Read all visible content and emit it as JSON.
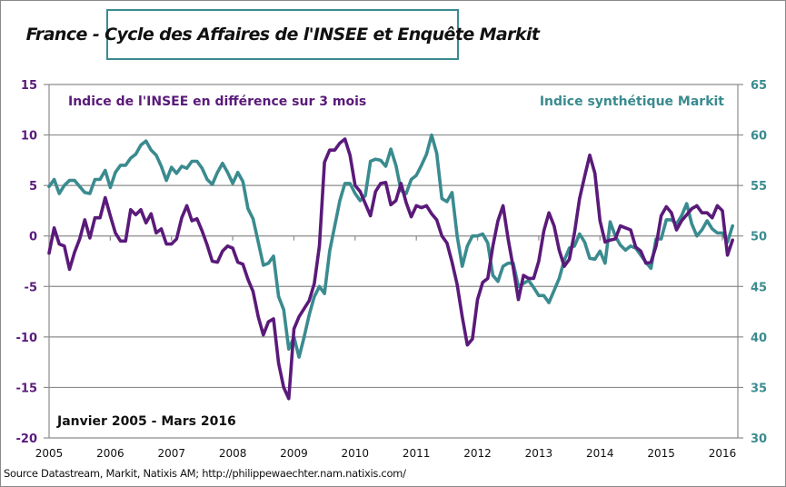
{
  "chart_data": {
    "type": "line",
    "title": "France - Cycle des Affaires de l'INSEE et Enquête Markit",
    "period_label": "Janvier 2005 - Mars 2016",
    "source": "Source Datastream, Markit, Natixis AM;  http://philippewaechter.nam.natixis.com/",
    "x_start": "2005-01",
    "x_end": "2016-03",
    "frequency": "monthly",
    "x_tick_labels": [
      "2005",
      "2006",
      "2007",
      "2008",
      "2009",
      "2010",
      "2011",
      "2012",
      "2013",
      "2014",
      "2015",
      "2016"
    ],
    "left_axis": {
      "ylim": [
        -20,
        15
      ],
      "ticks": [
        "15",
        "10",
        "5",
        "0",
        "-5",
        "-10",
        "-15",
        "-20"
      ],
      "color": "#5a1a7a"
    },
    "right_axis": {
      "ylim": [
        30,
        65
      ],
      "ticks": [
        "65",
        "60",
        "55",
        "50",
        "45",
        "40",
        "35",
        "30"
      ],
      "color": "#3a8b8f"
    },
    "grid": true,
    "series": [
      {
        "name": "Indice de l'INSEE en différence sur 3 mois",
        "axis": "left",
        "color": "#5a1a7a",
        "legend_position": "top-left",
        "values": [
          -1.7,
          0.8,
          -0.8,
          -1.0,
          -3.3,
          -1.6,
          -0.3,
          1.6,
          -0.2,
          1.8,
          1.8,
          3.8,
          2.0,
          0.3,
          -0.5,
          -0.5,
          2.6,
          2.1,
          2.6,
          1.3,
          2.2,
          0.3,
          0.7,
          -0.8,
          -0.8,
          -0.3,
          1.8,
          3.0,
          1.5,
          1.7,
          0.5,
          -0.9,
          -2.5,
          -2.6,
          -1.5,
          -1.0,
          -1.2,
          -2.6,
          -2.8,
          -4.3,
          -5.5,
          -8.0,
          -9.8,
          -8.5,
          -8.2,
          -12.6,
          -15.0,
          -16.1,
          -9.2,
          -8.0,
          -7.2,
          -6.4,
          -4.7,
          -1.0,
          7.3,
          8.5,
          8.5,
          9.2,
          9.6,
          8.0,
          5.0,
          4.4,
          3.2,
          2.0,
          4.4,
          5.2,
          5.3,
          3.1,
          3.5,
          5.2,
          3.3,
          1.9,
          3.0,
          2.8,
          3.0,
          2.2,
          1.6,
          0.0,
          -0.7,
          -2.6,
          -4.8,
          -8.0,
          -10.8,
          -10.2,
          -6.3,
          -4.6,
          -4.2,
          -1.0,
          1.5,
          3.0,
          -0.3,
          -3.1,
          -6.3,
          -3.9,
          -4.2,
          -4.2,
          -2.5,
          0.5,
          2.3,
          1.0,
          -1.4,
          -3.0,
          -2.3,
          0.3,
          3.7,
          5.9,
          8.0,
          6.2,
          1.5,
          -0.6,
          -0.4,
          -0.3,
          1.0,
          0.8,
          0.6,
          -1.1,
          -1.5,
          -2.7,
          -2.6,
          -1.0,
          2.0,
          2.9,
          2.3,
          0.6,
          1.5,
          2.1,
          2.7,
          3.0,
          2.3,
          2.3,
          1.8,
          3.0,
          2.5,
          -1.9,
          -0.4
        ]
      },
      {
        "name": "Indice synthétique Markit",
        "axis": "right",
        "color": "#3a8b8f",
        "legend_position": "top-right",
        "values": [
          54.9,
          55.6,
          54.2,
          55.0,
          55.5,
          55.5,
          54.9,
          54.3,
          54.2,
          55.6,
          55.6,
          56.5,
          54.8,
          56.3,
          57.0,
          57.0,
          57.7,
          58.1,
          59.0,
          59.4,
          58.5,
          58.0,
          56.9,
          55.5,
          56.8,
          56.2,
          56.9,
          56.7,
          57.4,
          57.4,
          56.7,
          55.6,
          55.1,
          56.3,
          57.2,
          56.3,
          55.2,
          56.3,
          55.4,
          52.7,
          51.7,
          49.4,
          47.1,
          47.3,
          48.0,
          44.0,
          42.7,
          38.8,
          40.0,
          38.0,
          40.0,
          42.2,
          44.0,
          45.0,
          44.3,
          48.5,
          51.0,
          53.5,
          55.2,
          55.2,
          54.2,
          53.5,
          54.0,
          57.4,
          57.6,
          57.5,
          56.9,
          58.6,
          57.0,
          54.5,
          54.2,
          55.6,
          56.0,
          57.0,
          58.1,
          60.0,
          58.2,
          53.7,
          53.4,
          54.3,
          50.0,
          47.0,
          49.0,
          50.0,
          50.0,
          50.2,
          49.3,
          46.1,
          45.5,
          47.0,
          47.3,
          47.3,
          45.0,
          45.3,
          45.6,
          44.9,
          44.1,
          44.1,
          43.4,
          44.6,
          45.8,
          47.6,
          48.8,
          49.0,
          50.2,
          49.4,
          47.8,
          47.7,
          48.5,
          47.3,
          51.4,
          50.0,
          49.1,
          48.6,
          49.0,
          48.8,
          48.1,
          47.4,
          46.8,
          49.7,
          49.7,
          51.6,
          51.6,
          51.2,
          52.0,
          53.2,
          51.2,
          50.0,
          50.6,
          51.5,
          50.7,
          50.3,
          50.3,
          49.4,
          51.0
        ]
      }
    ]
  }
}
